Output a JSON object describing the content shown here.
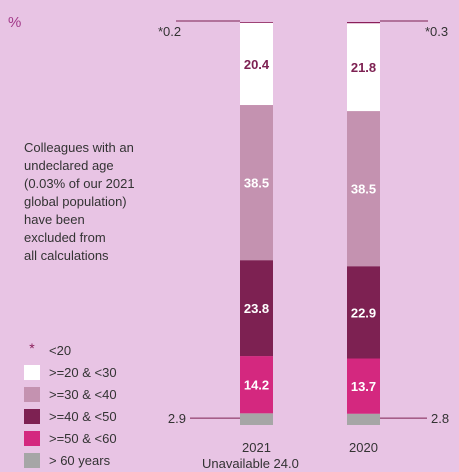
{
  "unit_label": "%",
  "note_lines": [
    "Colleagues with an",
    "undeclared age",
    "(0.03% of our 2021",
    "global population)",
    "have been",
    "excluded from",
    "all calculations"
  ],
  "footnote": "Unavailable 24.0",
  "chart_data": {
    "type": "bar",
    "stacked": true,
    "categories": [
      "2021",
      "2020"
    ],
    "series": [
      {
        "name": "> 60 years",
        "values": [
          2.9,
          2.8
        ],
        "color": "#a6a6a6",
        "text_color": "#ffffff"
      },
      {
        "name": ">=50 & <60",
        "values": [
          14.2,
          13.7
        ],
        "color": "#d4287f",
        "text_color": "#ffffff"
      },
      {
        "name": ">=40 & <50",
        "values": [
          23.8,
          22.9
        ],
        "color": "#7d2152",
        "text_color": "#ffffff"
      },
      {
        "name": ">=30 & <40",
        "values": [
          38.5,
          38.5
        ],
        "color": "#c492b0",
        "text_color": "#ffffff"
      },
      {
        "name": ">=20 & <30",
        "values": [
          20.4,
          21.8
        ],
        "color": "#ffffff",
        "text_color": "#7d2152"
      },
      {
        "name": "<20",
        "values": [
          0.2,
          0.3
        ],
        "color": "#8a1f5a",
        "marker": "*"
      }
    ],
    "callouts": {
      "bottom": [
        "2.9",
        "2.8"
      ],
      "top": [
        "*0.2",
        "*0.3"
      ]
    },
    "legend_order": [
      "<20",
      ">=20 & <30",
      ">=30 & <40",
      ">=40 & <50",
      ">=50 & <60",
      "> 60 years"
    ],
    "legend_placement": "bottom-left"
  }
}
